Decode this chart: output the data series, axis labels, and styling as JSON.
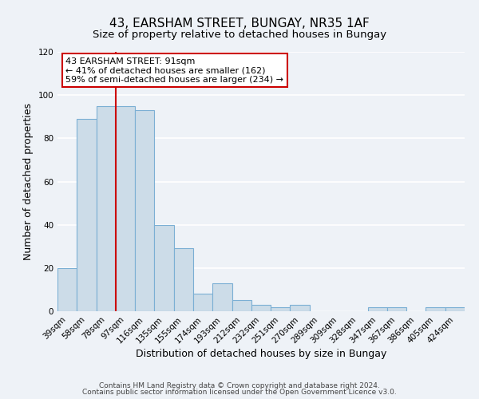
{
  "title": "43, EARSHAM STREET, BUNGAY, NR35 1AF",
  "subtitle": "Size of property relative to detached houses in Bungay",
  "xlabel": "Distribution of detached houses by size in Bungay",
  "ylabel": "Number of detached properties",
  "categories": [
    "39sqm",
    "58sqm",
    "78sqm",
    "97sqm",
    "116sqm",
    "135sqm",
    "155sqm",
    "174sqm",
    "193sqm",
    "212sqm",
    "232sqm",
    "251sqm",
    "270sqm",
    "289sqm",
    "309sqm",
    "328sqm",
    "347sqm",
    "367sqm",
    "386sqm",
    "405sqm",
    "424sqm"
  ],
  "values": [
    20,
    89,
    95,
    95,
    93,
    40,
    29,
    8,
    13,
    5,
    3,
    2,
    3,
    0,
    0,
    0,
    2,
    2,
    0,
    2,
    2
  ],
  "bar_color": "#ccdce8",
  "bar_edge_color": "#7bafd4",
  "vline_x": 2.5,
  "vline_color": "#cc0000",
  "ylim": [
    0,
    120
  ],
  "yticks": [
    0,
    20,
    40,
    60,
    80,
    100,
    120
  ],
  "annotation_text": "43 EARSHAM STREET: 91sqm\n← 41% of detached houses are smaller (162)\n59% of semi-detached houses are larger (234) →",
  "annotation_box_color": "#ffffff",
  "annotation_box_edge": "#cc0000",
  "footer_line1": "Contains HM Land Registry data © Crown copyright and database right 2024.",
  "footer_line2": "Contains public sector information licensed under the Open Government Licence v3.0.",
  "background_color": "#eef2f7",
  "grid_color": "#ffffff",
  "title_fontsize": 11,
  "subtitle_fontsize": 9.5,
  "axis_label_fontsize": 9,
  "tick_fontsize": 7.5,
  "annotation_fontsize": 8,
  "footer_fontsize": 6.5
}
